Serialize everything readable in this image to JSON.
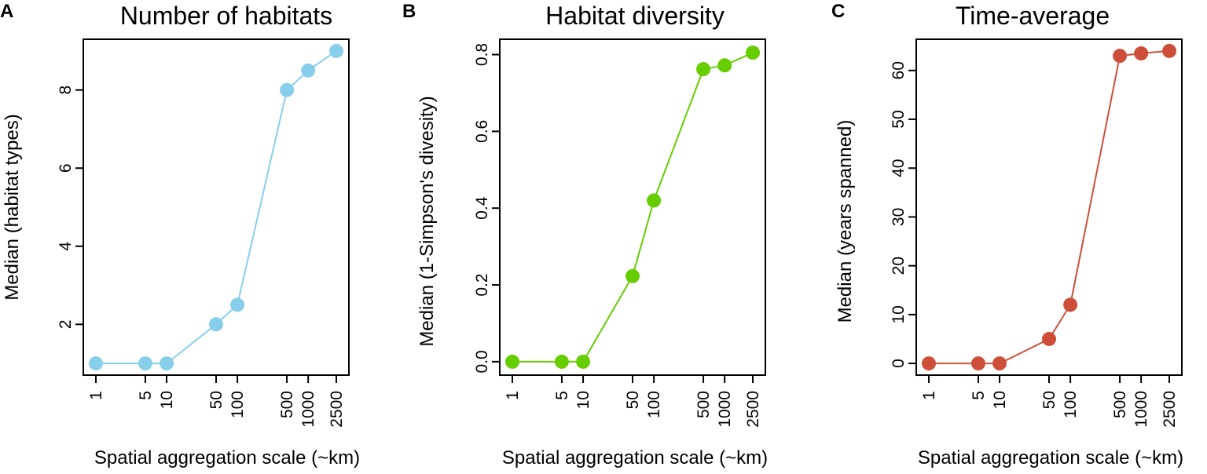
{
  "figure": {
    "background": "#ffffff"
  },
  "chart_data": [
    {
      "type": "line",
      "panel": "A",
      "title": "Number of habitats",
      "xlabel": "Spatial aggregation scale (~km)",
      "ylabel": "Median (habitat types)",
      "x_scale": "log",
      "x": [
        1,
        5,
        10,
        50,
        100,
        500,
        1000,
        2500
      ],
      "x_tick_labels": [
        "1",
        "5",
        "10",
        "50",
        "100",
        "500",
        "1000",
        "2500"
      ],
      "series": [
        {
          "name": "Number of habitats",
          "values": [
            1,
            1,
            1,
            2,
            2.5,
            8,
            8.5,
            9
          ],
          "color": "#87ceeb"
        }
      ],
      "ylim": [
        0.7,
        9.3
      ],
      "y_ticks": [
        2,
        4,
        6,
        8
      ],
      "y_tick_labels": [
        "2",
        "4",
        "6",
        "8"
      ],
      "grid": false
    },
    {
      "type": "line",
      "panel": "B",
      "title": "Habitat diversity",
      "xlabel": "Spatial aggregation scale (~km)",
      "ylabel": "Median (1-Simpson's divesity)",
      "x_scale": "log",
      "x": [
        1,
        5,
        10,
        50,
        100,
        500,
        1000,
        2500
      ],
      "x_tick_labels": [
        "1",
        "5",
        "10",
        "50",
        "100",
        "500",
        "1000",
        "2500"
      ],
      "series": [
        {
          "name": "Habitat diversity",
          "values": [
            0,
            0,
            0,
            0.223,
            0.42,
            0.762,
            0.772,
            0.805
          ],
          "color": "#66cd00"
        }
      ],
      "ylim": [
        -0.035,
        0.84
      ],
      "y_ticks": [
        0,
        0.2,
        0.4,
        0.6,
        0.8
      ],
      "y_tick_labels": [
        "0.0",
        "0.2",
        "0.4",
        "0.6",
        "0.8"
      ],
      "grid": false
    },
    {
      "type": "line",
      "panel": "C",
      "title": "Time-average",
      "xlabel": "Spatial aggregation scale (~km)",
      "ylabel": "Median (years spanned)",
      "x_scale": "log",
      "x": [
        1,
        5,
        10,
        50,
        100,
        500,
        1000,
        2500
      ],
      "x_tick_labels": [
        "1",
        "5",
        "10",
        "50",
        "100",
        "500",
        "1000",
        "2500"
      ],
      "series": [
        {
          "name": "Time-average",
          "values": [
            0,
            0,
            0,
            5,
            12,
            63,
            63.5,
            64
          ],
          "color": "#cd4f39"
        }
      ],
      "ylim": [
        -2.4,
        66.4
      ],
      "y_ticks": [
        0,
        10,
        20,
        30,
        40,
        50,
        60
      ],
      "y_tick_labels": [
        "0",
        "10",
        "20",
        "30",
        "40",
        "50",
        "60"
      ],
      "grid": false
    }
  ]
}
